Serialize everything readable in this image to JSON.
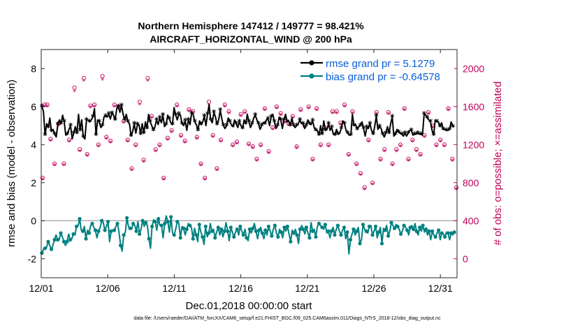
{
  "colors": {
    "rmse": "#000000",
    "bias": "#008080",
    "obs": "#c0005a",
    "legend_text": "#0a5fd8",
    "zero_line": "#b0b0b0"
  },
  "footnote": "data file: /Users/raeder/DAI/ATM_forcXX/CAM6_setup/f.e21.FHIST_BGC.f09_025.CAM6assim.011/Diags_NTrS_2018-12/obs_diag_output.nc",
  "chart_data": {
    "type": "line",
    "title": "Northern Hemisphere 147412 / 149777 = 98.421%",
    "subtitle": "AIRCRAFT_HORIZONTAL_WIND @ 200 hPa",
    "xlabel": "Dec.01,2018 00:00:00 start",
    "ylabel": "rmse and bias (model - observation)",
    "y2label": "# of obs: o=possible; ×=assimilated",
    "xlim": [
      0,
      31.25
    ],
    "ylim": [
      -3,
      9
    ],
    "y2lim": [
      -200,
      2200
    ],
    "x_tick_values": [
      0,
      5,
      10,
      15,
      20,
      25,
      30
    ],
    "x_tick_labels": [
      "12/01",
      "12/06",
      "12/11",
      "12/16",
      "12/21",
      "12/26",
      "12/31"
    ],
    "y_ticks": [
      "-2",
      "0",
      "2",
      "4",
      "6",
      "8"
    ],
    "y2_ticks": [
      "0",
      "400",
      "800",
      "1200",
      "1600",
      "2000"
    ],
    "legend": [
      {
        "name": "rmse",
        "label": "rmse grand pr = 5.1279"
      },
      {
        "name": "bias",
        "label": "bias grand pr = -0.64578"
      }
    ],
    "series": [
      {
        "name": "rmse",
        "axis": "left",
        "marker": "star",
        "style": "line",
        "values": [
          6.0,
          5.75,
          4.5,
          5.1,
          4.9,
          5.4,
          4.7,
          4.8,
          4.55,
          4.4,
          5.05,
          5.3,
          5.1,
          5.55,
          5.2,
          4.5,
          4.55,
          4.8,
          5.0,
          4.3,
          4.6,
          4.95,
          4.6,
          5.6,
          4.75,
          5.3,
          4.4,
          4.3,
          5.3,
          5.3,
          5.2,
          5.3,
          5.45,
          5.9,
          4.5,
          5.3,
          5.2,
          4.9,
          5.0,
          5.45,
          5.5,
          5.45,
          5.6,
          5.35,
          5.65,
          5.55,
          5.3,
          5.9,
          6.0,
          5.7,
          6.05,
          5.6,
          5.3,
          5.6,
          5.2,
          5.1,
          4.45,
          4.7,
          5.1,
          4.6,
          5.05,
          5.05,
          4.55,
          5.1,
          4.6,
          5.2,
          4.85,
          5.6,
          5.2,
          5.0,
          4.75,
          4.95,
          5.3,
          5.05,
          5.4,
          5.15,
          5.55,
          4.95,
          5.05,
          5.55,
          5.35,
          5.15,
          5.05,
          5.95,
          5.55,
          5.3,
          5.6,
          5.55,
          5.1,
          5.0,
          5.25,
          4.75,
          5.3,
          5.05,
          5.65,
          5.6,
          5.2,
          5.05,
          4.75,
          5.25,
          5.05,
          5.2,
          5.5,
          5.0,
          5.6,
          6.1,
          5.3,
          5.15,
          5.7,
          5.45,
          5.05,
          5.3,
          5.8,
          5.35,
          5.0,
          4.85,
          5.0,
          5.4,
          5.2,
          5.05,
          4.95,
          5.3,
          5.1,
          4.9,
          5.2,
          5.0,
          4.85,
          5.3,
          5.1,
          5.6,
          5.2,
          4.9,
          5.1,
          5.4,
          5.55,
          5.3,
          5.1,
          4.8,
          5.0,
          5.15,
          5.1,
          5.3,
          5.35,
          5.0,
          5.45,
          5.6,
          5.2,
          4.85,
          5.0,
          5.45,
          5.3,
          4.85,
          5.3,
          5.6,
          5.2,
          5.25,
          5.0,
          5.4,
          5.0,
          4.9,
          5.0,
          5.1,
          5.3,
          5.1,
          5.1,
          4.85,
          5.0,
          5.3,
          5.1,
          5.05,
          5.25,
          4.9,
          4.75,
          4.75,
          4.5,
          5.0,
          4.55,
          5.25,
          4.75,
          4.8,
          5.1,
          4.75,
          4.9,
          4.55,
          4.5,
          4.8,
          4.55,
          4.6,
          4.85,
          5.25,
          5.1,
          4.75,
          4.6,
          4.5,
          4.5,
          5.6,
          5.0,
          5.05,
          4.8,
          4.95,
          5.0,
          5.2,
          4.85,
          4.45,
          4.9,
          4.85,
          5.1,
          4.75,
          4.55,
          4.95,
          5.5,
          4.8,
          4.95,
          4.85,
          4.55,
          4.4,
          4.6,
          4.95,
          4.6,
          5.1,
          5.45,
          4.45,
          4.55,
          4.8,
          4.65,
          4.6,
          4.55,
          4.45,
          4.6,
          4.45,
          4.6,
          4.75,
          4.75,
          4.5,
          4.55,
          4.55,
          4.6,
          4.55,
          4.55,
          4.5,
          5.6,
          5.55,
          5.4,
          5.3,
          5.2,
          4.75,
          4.5,
          5.3,
          5.2,
          5.2,
          4.95,
          5.15,
          4.8,
          4.8,
          4.75,
          4.75,
          4.8,
          5.2,
          4.95,
          4.95
        ]
      },
      {
        "name": "bias",
        "axis": "left",
        "marker": "dot",
        "style": "line",
        "values": [
          -1.7,
          -1.5,
          -1.45,
          -1.4,
          -1.1,
          -1.3,
          -1.5,
          -1.3,
          -1.0,
          -0.75,
          -1.0,
          -1.0,
          -0.65,
          -0.85,
          -1.1,
          -1.3,
          -1.1,
          -0.7,
          -1.0,
          -0.95,
          -0.7,
          -0.75,
          -0.3,
          -0.25,
          0.1,
          -0.5,
          -0.55,
          -0.3,
          -0.95,
          -0.5,
          -0.65,
          -0.25,
          -0.15,
          -0.35,
          -0.5,
          -0.9,
          -0.55,
          -0.35,
          0.0,
          -0.1,
          -0.5,
          -0.3,
          -0.05,
          -1.1,
          -0.55,
          -0.5,
          -0.5,
          -0.3,
          -0.15,
          -0.6,
          -1.3,
          -1.6,
          -0.75,
          -0.6,
          0.15,
          -0.3,
          -0.4,
          -0.45,
          -0.15,
          -0.25,
          -0.55,
          -0.05,
          -0.7,
          -0.45,
          0.0,
          -0.3,
          -0.1,
          -0.25,
          -0.95,
          -1.45,
          -0.3,
          0.05,
          -0.05,
          -0.5,
          0.1,
          -0.25,
          -0.25,
          -0.9,
          -0.15,
          0.25,
          -0.05,
          -0.6,
          0.2,
          -0.65,
          -0.75,
          -0.45,
          -0.05,
          -0.15,
          -0.9,
          -0.3,
          -0.4,
          -0.75,
          -0.45,
          -0.15,
          -0.25,
          -0.35,
          -0.95,
          -0.4,
          -0.75,
          -1.1,
          -0.2,
          -0.6,
          -0.85,
          -1.25,
          -0.3,
          -0.85,
          -0.65,
          -0.15,
          -0.55,
          -0.45,
          -0.9,
          -0.6,
          -0.35,
          -0.75,
          -0.45,
          -0.85,
          -0.55,
          -0.1,
          -0.55,
          -1.05,
          -0.35,
          -0.6,
          -0.85,
          -0.6,
          -0.45,
          -0.75,
          -0.3,
          -0.55,
          -0.75,
          -0.45,
          -0.9,
          -1.05,
          -0.45,
          -0.65,
          -0.4,
          -0.15,
          -0.55,
          -0.95,
          -0.5,
          -0.35,
          -0.65,
          -0.95,
          -0.5,
          -0.75,
          -0.3,
          -0.55,
          -0.8,
          -0.45,
          -0.25,
          -0.65,
          -0.85,
          -0.45,
          -0.6,
          -0.9,
          -0.35,
          -0.55,
          -0.3,
          -0.7,
          -1.1,
          -0.5,
          -0.65,
          -0.45,
          -0.75,
          -1.2,
          -0.45,
          -0.25,
          -0.45,
          -0.7,
          -0.35,
          -0.65,
          -0.9,
          -0.1,
          -0.55,
          -0.45,
          -0.85,
          -0.3,
          -0.15,
          -0.25,
          -0.35,
          -0.45,
          -0.2,
          -0.65,
          -0.55,
          -0.9,
          -0.55,
          -0.35,
          -0.75,
          -0.45,
          -0.25,
          -0.55,
          -0.75,
          -0.5,
          -0.35,
          -0.95,
          -0.6,
          -1.75,
          -1.0,
          -0.7,
          -0.45,
          -0.75,
          -0.55,
          -0.35,
          -1.2,
          -1.0,
          -0.2,
          -0.45,
          -0.55,
          -0.65,
          -0.3,
          -0.25,
          -0.75,
          -0.55,
          -0.3,
          -0.9,
          -0.6,
          -0.35,
          -1.2,
          -0.4,
          -0.5,
          -0.25,
          -0.8,
          -0.55,
          -0.1,
          -0.25,
          -0.4,
          -0.2,
          -0.3,
          -0.45,
          -0.7,
          -0.55,
          -0.25,
          -0.35,
          -0.5,
          -0.75,
          -0.35,
          -0.25,
          -0.45,
          -0.15,
          -0.55,
          -0.75,
          -0.35,
          -0.55,
          -0.25,
          -0.6,
          -0.45,
          -0.75,
          -0.55,
          -1.0,
          -0.55,
          -0.75,
          -0.85,
          -0.65,
          -0.5,
          -1.0,
          -0.65,
          -0.7,
          -0.85,
          -0.6,
          -0.65,
          -1.0,
          -0.65,
          -0.75,
          -0.6
        ]
      },
      {
        "name": "obs_possible",
        "axis": "right",
        "marker": "circle",
        "style": "scatter",
        "x": [
          0.1,
          0.25,
          0.45,
          0.7,
          1.0,
          1.3,
          1.7,
          2.1,
          2.5,
          2.9,
          3.2,
          3.45,
          3.7,
          4.0,
          4.3,
          4.6,
          4.9,
          5.2,
          5.5,
          5.8,
          6.2,
          6.5,
          6.8,
          7.1,
          7.4,
          7.7,
          8.0,
          8.3,
          8.6,
          8.9,
          9.2,
          9.5,
          9.8,
          10.2,
          10.5,
          10.8,
          11.1,
          11.4,
          11.7,
          12.0,
          12.3,
          12.6,
          12.9,
          13.2,
          13.5,
          13.8,
          14.1,
          14.4,
          14.7,
          15.0,
          15.3,
          15.6,
          15.9,
          16.2,
          16.5,
          16.8,
          17.1,
          17.4,
          17.7,
          18.0,
          18.3,
          18.6,
          18.9,
          19.2,
          19.5,
          19.8,
          20.1,
          20.4,
          20.7,
          21.0,
          21.3,
          21.6,
          21.9,
          22.2,
          22.5,
          22.8,
          23.1,
          23.4,
          23.7,
          24.0,
          24.3,
          24.6,
          24.9,
          25.2,
          25.5,
          25.8,
          26.1,
          26.4,
          26.7,
          27.0,
          27.3,
          27.6,
          27.9,
          28.2,
          28.5,
          28.8,
          29.1,
          29.4,
          29.7,
          30.0,
          30.3,
          30.6,
          30.9,
          31.2
        ],
        "values": [
          850,
          1620,
          1620,
          1260,
          1000,
          1420,
          1000,
          1250,
          1800,
          1150,
          1900,
          1100,
          1610,
          1620,
          1200,
          1920,
          1280,
          1240,
          1620,
          1600,
          1450,
          1250,
          950,
          1200,
          1650,
          1040,
          1900,
          1500,
          1150,
          1200,
          850,
          1270,
          1350,
          1620,
          1300,
          1240,
          1570,
          1550,
          1280,
          1000,
          850,
          1650,
          1300,
          950,
          1250,
          1620,
          1550,
          1200,
          1230,
          1520,
          1550,
          1210,
          1180,
          1050,
          1200,
          1580,
          1130,
          1380,
          1600,
          1530,
          1450,
          1420,
          1500,
          1180,
          1570,
          1400,
          1600,
          1050,
          1580,
          1200,
          1380,
          1200,
          1550,
          1550,
          1430,
          1620,
          1100,
          1550,
          1000,
          900,
          750,
          1250,
          800,
          1540,
          1050,
          1150,
          1540,
          1000,
          1150,
          1200,
          1580,
          1050,
          1250,
          1150,
          1100,
          1300,
          1540,
          1400,
          1200,
          1250,
          1200,
          1580,
          1050,
          750
        ]
      },
      {
        "name": "obs_assimilated",
        "axis": "right",
        "marker": "x",
        "style": "scatter",
        "x": [
          0.1,
          0.25,
          0.45,
          0.7,
          1.0,
          1.3,
          1.7,
          2.1,
          2.5,
          2.9,
          3.2,
          3.45,
          3.7,
          4.0,
          4.3,
          4.6,
          4.9,
          5.2,
          5.5,
          5.8,
          6.2,
          6.5,
          6.8,
          7.1,
          7.4,
          7.7,
          8.0,
          8.3,
          8.6,
          8.9,
          9.2,
          9.5,
          9.8,
          10.2,
          10.5,
          10.8,
          11.1,
          11.4,
          11.7,
          12.0,
          12.3,
          12.6,
          12.9,
          13.2,
          13.5,
          13.8,
          14.1,
          14.4,
          14.7,
          15.0,
          15.3,
          15.6,
          15.9,
          16.2,
          16.5,
          16.8,
          17.1,
          17.4,
          17.7,
          18.0,
          18.3,
          18.6,
          18.9,
          19.2,
          19.5,
          19.8,
          20.1,
          20.4,
          20.7,
          21.0,
          21.3,
          21.6,
          21.9,
          22.2,
          22.5,
          22.8,
          23.1,
          23.4,
          23.7,
          24.0,
          24.3,
          24.6,
          24.9,
          25.2,
          25.5,
          25.8,
          26.1,
          26.4,
          26.7,
          27.0,
          27.3,
          27.6,
          27.9,
          28.2,
          28.5,
          28.8,
          29.1,
          29.4,
          29.7,
          30.0,
          30.3,
          30.6,
          30.9,
          31.2
        ],
        "values": [
          830,
          1600,
          1600,
          1240,
          980,
          1400,
          980,
          1230,
          1760,
          1130,
          1870,
          1080,
          1590,
          1600,
          1180,
          1880,
          1260,
          1220,
          1600,
          1580,
          1430,
          1230,
          930,
          1180,
          1620,
          1020,
          1870,
          1480,
          1130,
          1180,
          830,
          1250,
          1330,
          1600,
          1280,
          1220,
          1550,
          1530,
          1260,
          980,
          830,
          1620,
          1280,
          930,
          1230,
          1600,
          1530,
          1180,
          1210,
          1500,
          1530,
          1190,
          1160,
          1030,
          1180,
          1560,
          1110,
          1360,
          1580,
          1510,
          1430,
          1400,
          1480,
          1160,
          1550,
          1380,
          1580,
          1030,
          1560,
          1180,
          1360,
          1180,
          1530,
          1530,
          1410,
          1600,
          1080,
          1530,
          980,
          880,
          730,
          1230,
          780,
          1520,
          1030,
          1130,
          1520,
          980,
          1130,
          1180,
          1560,
          1030,
          1230,
          1130,
          1080,
          1280,
          1520,
          1380,
          1180,
          1230,
          1180,
          1560,
          1030,
          730
        ]
      }
    ]
  }
}
